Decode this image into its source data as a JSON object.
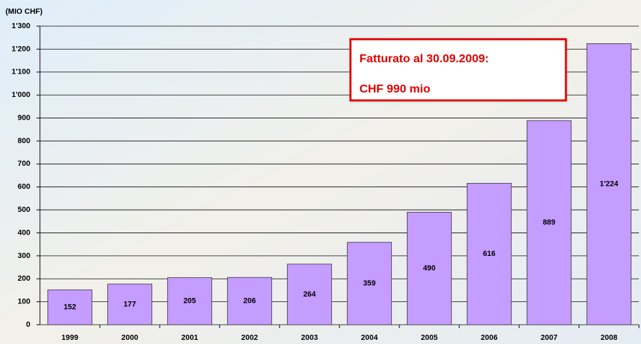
{
  "chart_data": {
    "type": "bar",
    "axis_label": "(MIO CHF)",
    "categories": [
      "1999",
      "2000",
      "2001",
      "2002",
      "2003",
      "2004",
      "2005",
      "2006",
      "2007",
      "2008"
    ],
    "values": [
      152,
      177,
      205,
      206,
      264,
      359,
      490,
      616,
      889,
      1224
    ],
    "value_labels": [
      "152",
      "177",
      "205",
      "206",
      "264",
      "359",
      "490",
      "616",
      "889",
      "1'224"
    ],
    "color": "#c59cff",
    "ylim": [
      0,
      1300
    ],
    "yticks": [
      0,
      100,
      200,
      300,
      400,
      500,
      600,
      700,
      800,
      900,
      {
        "value": 1000,
        "label": "1'000"
      },
      {
        "value": 1100,
        "label": "1'100"
      },
      {
        "value": 1200,
        "label": "1'200"
      },
      {
        "value": 1300,
        "label": "1'300"
      }
    ],
    "grid": true,
    "annotation": {
      "line1": "Fatturato al 30.09.2009:",
      "line2": "CHF 990 mio"
    }
  }
}
